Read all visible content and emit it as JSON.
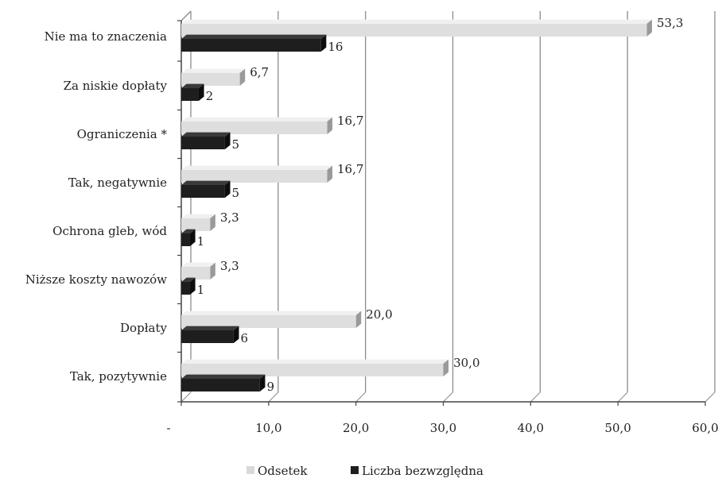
{
  "chart_data": {
    "type": "bar",
    "orientation": "horizontal",
    "categories": [
      "Nie ma to znaczenia",
      "Za niskie dopłaty",
      "Ograniczenia *",
      "Tak, negatywnie",
      "Ochrona gleb, wód",
      "Niższe koszty nawozów",
      "Dopłaty",
      "Tak, pozytywnie"
    ],
    "series": [
      {
        "name": "Odsetek",
        "values": [
          53.3,
          6.7,
          16.7,
          16.7,
          3.3,
          3.3,
          20.0,
          30.0
        ],
        "labels": [
          "53,3",
          "6,7",
          "16,7",
          "16,7",
          "3,3",
          "3,3",
          "20,0",
          "30,0"
        ],
        "color": "#d9d9d9"
      },
      {
        "name": "Liczba bezwzględna",
        "values": [
          16,
          2,
          5,
          5,
          1,
          1,
          6,
          9
        ],
        "labels": [
          "16",
          "2",
          "5",
          "5",
          "1",
          "1",
          "6",
          "9"
        ],
        "color": "#1e1e1e"
      }
    ],
    "x_ticks": [
      "-",
      "10,0",
      "20,0",
      "30,0",
      "40,0",
      "50,0",
      "60,0"
    ],
    "xlim": [
      0,
      60
    ],
    "grid": true,
    "legend_position": "bottom",
    "three_d": true
  }
}
